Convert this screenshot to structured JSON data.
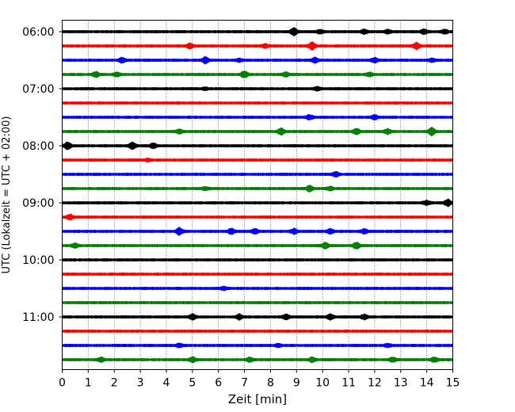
{
  "chart_data": {
    "type": "line",
    "title": "",
    "xlabel": "Zeit  [min]",
    "ylabel": "UTC (Lokalzeit = UTC + 02:00)",
    "xlim": [
      0,
      15
    ],
    "xticks": [
      0,
      1,
      2,
      3,
      4,
      5,
      6,
      7,
      8,
      9,
      10,
      11,
      12,
      13,
      14,
      15
    ],
    "yticks": [
      "06:00",
      "07:00",
      "08:00",
      "09:00",
      "10:00",
      "11:00"
    ],
    "y_tick_rows": [
      0,
      4,
      8,
      12,
      16,
      20
    ],
    "grid": "vertical dotted",
    "row_interval_minutes": 15,
    "row_colors": [
      "#000000",
      "#ff0000",
      "#0000ff",
      "#008000"
    ],
    "series": [
      {
        "start": "06:00",
        "color": "#000000",
        "bursts": [
          [
            8.9,
            0.9
          ],
          [
            9.9,
            0.5
          ],
          [
            11.6,
            0.5
          ],
          [
            12.5,
            0.5
          ],
          [
            13.9,
            0.6
          ],
          [
            14.7,
            0.5
          ]
        ]
      },
      {
        "start": "06:15",
        "color": "#ff0000",
        "bursts": [
          [
            4.9,
            0.6
          ],
          [
            7.8,
            0.4
          ],
          [
            9.6,
            1.0
          ],
          [
            13.6,
            0.8
          ]
        ]
      },
      {
        "start": "06:30",
        "color": "#0000ff",
        "bursts": [
          [
            2.3,
            0.6
          ],
          [
            5.5,
            0.9
          ],
          [
            6.8,
            0.4
          ],
          [
            9.7,
            0.6
          ],
          [
            12.0,
            0.5
          ],
          [
            14.2,
            0.4
          ]
        ]
      },
      {
        "start": "06:45",
        "color": "#008000",
        "bursts": [
          [
            1.3,
            0.6
          ],
          [
            2.1,
            0.5
          ],
          [
            7.0,
            0.9
          ],
          [
            8.6,
            0.5
          ],
          [
            11.8,
            0.5
          ]
        ]
      },
      {
        "start": "07:00",
        "color": "#000000",
        "bursts": [
          [
            5.5,
            0.3
          ],
          [
            9.8,
            0.4
          ]
        ]
      },
      {
        "start": "07:15",
        "color": "#ff0000",
        "bursts": []
      },
      {
        "start": "07:30",
        "color": "#0000ff",
        "bursts": [
          [
            9.5,
            0.6
          ],
          [
            12.0,
            0.5
          ]
        ]
      },
      {
        "start": "07:45",
        "color": "#008000",
        "bursts": [
          [
            4.5,
            0.5
          ],
          [
            8.4,
            0.8
          ],
          [
            11.3,
            0.7
          ],
          [
            12.5,
            0.6
          ],
          [
            14.2,
            1.0
          ]
        ]
      },
      {
        "start": "08:00",
        "color": "#000000",
        "bursts": [
          [
            0.2,
            1.0
          ],
          [
            2.7,
            1.0
          ],
          [
            3.5,
            0.6
          ]
        ]
      },
      {
        "start": "08:15",
        "color": "#ff0000",
        "bursts": [
          [
            3.3,
            0.3
          ]
        ]
      },
      {
        "start": "08:30",
        "color": "#0000ff",
        "bursts": [
          [
            10.5,
            0.6
          ]
        ]
      },
      {
        "start": "08:45",
        "color": "#008000",
        "bursts": [
          [
            5.5,
            0.4
          ],
          [
            9.5,
            0.8
          ],
          [
            10.3,
            0.5
          ]
        ]
      },
      {
        "start": "09:00",
        "color": "#000000",
        "bursts": [
          [
            14.0,
            0.5
          ],
          [
            14.8,
            0.9
          ]
        ]
      },
      {
        "start": "09:15",
        "color": "#ff0000",
        "bursts": [
          [
            0.3,
            0.7
          ]
        ]
      },
      {
        "start": "09:30",
        "color": "#0000ff",
        "bursts": [
          [
            4.5,
            0.9
          ],
          [
            6.5,
            0.7
          ],
          [
            7.4,
            0.6
          ],
          [
            8.9,
            0.6
          ],
          [
            10.3,
            0.6
          ],
          [
            11.6,
            0.6
          ]
        ]
      },
      {
        "start": "09:45",
        "color": "#008000",
        "bursts": [
          [
            0.5,
            0.5
          ],
          [
            10.1,
            0.8
          ],
          [
            11.3,
            0.8
          ]
        ]
      },
      {
        "start": "10:00",
        "color": "#000000",
        "bursts": []
      },
      {
        "start": "10:15",
        "color": "#ff0000",
        "bursts": []
      },
      {
        "start": "10:30",
        "color": "#0000ff",
        "bursts": [
          [
            6.2,
            0.4
          ]
        ]
      },
      {
        "start": "10:45",
        "color": "#008000",
        "bursts": []
      },
      {
        "start": "11:00",
        "color": "#000000",
        "bursts": [
          [
            5.0,
            0.7
          ],
          [
            6.8,
            0.7
          ],
          [
            8.6,
            0.7
          ],
          [
            10.3,
            0.7
          ],
          [
            11.6,
            0.6
          ]
        ]
      },
      {
        "start": "11:15",
        "color": "#ff0000",
        "bursts": []
      },
      {
        "start": "11:30",
        "color": "#0000ff",
        "bursts": [
          [
            4.5,
            0.4
          ],
          [
            8.3,
            0.4
          ],
          [
            12.5,
            0.4
          ]
        ]
      },
      {
        "start": "11:45",
        "color": "#008000",
        "bursts": [
          [
            1.5,
            0.5
          ],
          [
            5.0,
            0.6
          ],
          [
            7.2,
            0.6
          ],
          [
            9.6,
            0.6
          ],
          [
            12.7,
            0.6
          ],
          [
            14.3,
            0.6
          ]
        ]
      }
    ]
  }
}
